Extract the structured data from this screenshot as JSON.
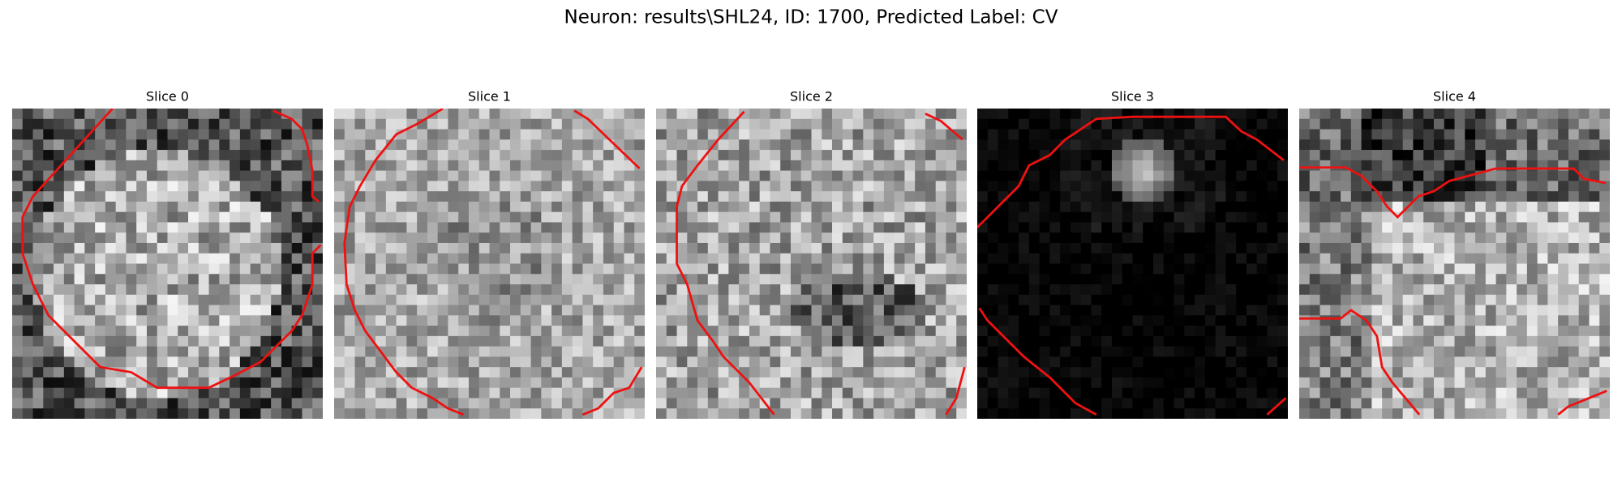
{
  "title": "Neuron: results\\SHL24, ID: 1700, Predicted Label: CV",
  "panels": [
    {
      "title": "Slice 0"
    },
    {
      "title": "Slice 1"
    },
    {
      "title": "Slice 2"
    },
    {
      "title": "Slice 3"
    },
    {
      "title": "Slice 4"
    }
  ]
}
